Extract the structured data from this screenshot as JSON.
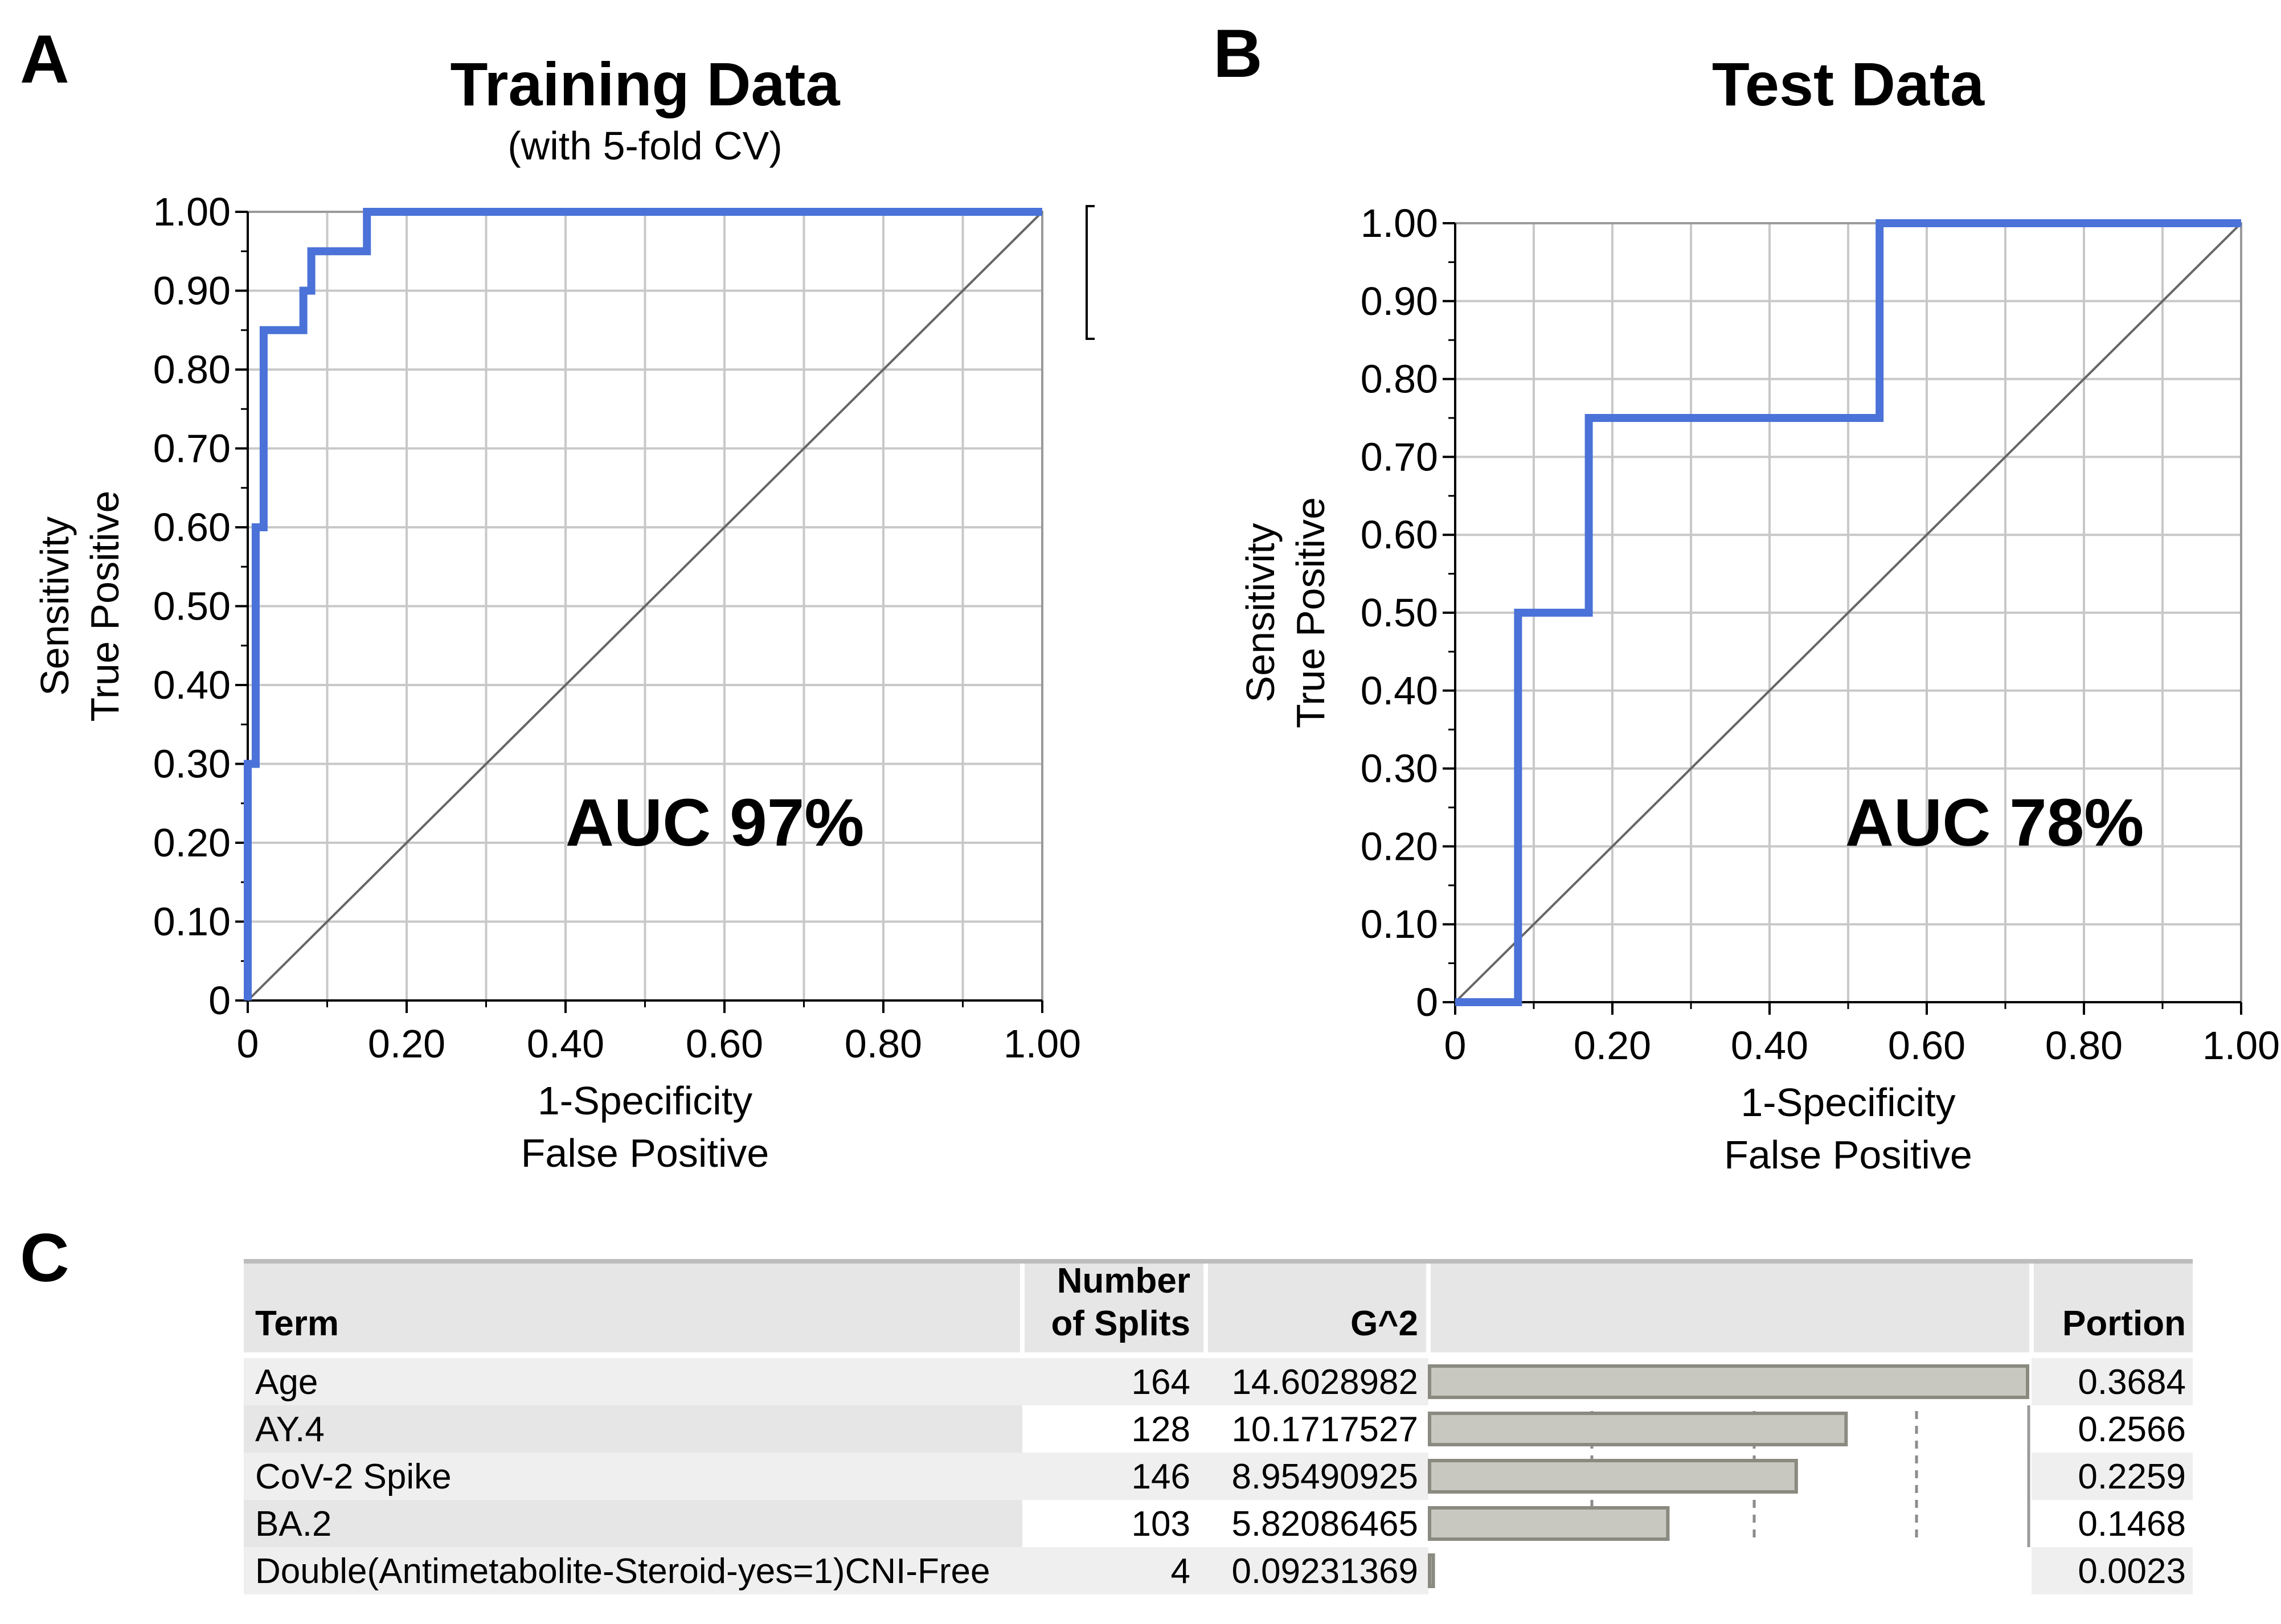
{
  "panels": {
    "a": {
      "letter": "A"
    },
    "b": {
      "letter": "B"
    },
    "c": {
      "letter": "C"
    }
  },
  "chart_data": [
    {
      "type": "line",
      "title": "Training Data",
      "subtitle": "(with 5-fold CV)",
      "xlabel": [
        "1-Specificity",
        "False Positive"
      ],
      "ylabel": [
        "Sensitivity",
        "True Positive"
      ],
      "xlim": [
        0,
        1
      ],
      "ylim": [
        0,
        1
      ],
      "x_ticks": [
        "0",
        "0.20",
        "0.40",
        "0.60",
        "0.80",
        "1.00"
      ],
      "y_ticks": [
        "0",
        "0.10",
        "0.20",
        "0.30",
        "0.40",
        "0.50",
        "0.60",
        "0.70",
        "0.80",
        "0.90",
        "1.00"
      ],
      "grid": true,
      "annotation": "AUC 97%",
      "roc": {
        "color": "#4a72d8",
        "points": [
          [
            0,
            0
          ],
          [
            0,
            0.3
          ],
          [
            0.01,
            0.3
          ],
          [
            0.01,
            0.6
          ],
          [
            0.02,
            0.6
          ],
          [
            0.02,
            0.85
          ],
          [
            0.07,
            0.85
          ],
          [
            0.07,
            0.9
          ],
          [
            0.08,
            0.9
          ],
          [
            0.08,
            0.95
          ],
          [
            0.15,
            0.95
          ],
          [
            0.15,
            1.0
          ],
          [
            1.0,
            1.0
          ]
        ]
      },
      "reference": {
        "color": "#666666",
        "points": [
          [
            0,
            0
          ],
          [
            1,
            1
          ]
        ]
      }
    },
    {
      "type": "line",
      "title": "Test Data",
      "xlabel": [
        "1-Specificity",
        "False Positive"
      ],
      "ylabel": [
        "Sensitivity",
        "True Positive"
      ],
      "xlim": [
        0,
        1
      ],
      "ylim": [
        0,
        1
      ],
      "x_ticks": [
        "0",
        "0.20",
        "0.40",
        "0.60",
        "0.80",
        "1.00"
      ],
      "y_ticks": [
        "0",
        "0.10",
        "0.20",
        "0.30",
        "0.40",
        "0.50",
        "0.60",
        "0.70",
        "0.80",
        "0.90",
        "1.00"
      ],
      "grid": true,
      "annotation": "AUC 78%",
      "roc": {
        "color": "#4a72d8",
        "points": [
          [
            0,
            0
          ],
          [
            0.08,
            0
          ],
          [
            0.08,
            0.5
          ],
          [
            0.17,
            0.5
          ],
          [
            0.17,
            0.75
          ],
          [
            0.54,
            0.75
          ],
          [
            0.54,
            1.0
          ],
          [
            1.0,
            1.0
          ]
        ]
      },
      "reference": {
        "color": "#666666",
        "points": [
          [
            0,
            0
          ],
          [
            1,
            1
          ]
        ]
      }
    },
    {
      "type": "table",
      "headers": {
        "term": "Term",
        "splits": [
          "Number",
          "of Splits"
        ],
        "g2": "G^2",
        "portion": "Portion"
      },
      "bar_max": 0.3684,
      "rows": [
        {
          "term": "Age",
          "splits": "164",
          "g2": "14.6028982",
          "portion": "0.3684",
          "value": 0.3684
        },
        {
          "term": "AY.4",
          "splits": "128",
          "g2": "10.1717527",
          "portion": "0.2566",
          "value": 0.2566
        },
        {
          "term": "CoV-2 Spike",
          "splits": "146",
          "g2": "8.95490925",
          "portion": "0.2259",
          "value": 0.2259
        },
        {
          "term": "BA.2",
          "splits": "103",
          "g2": "5.82086465",
          "portion": "0.1468",
          "value": 0.1468
        },
        {
          "term": "Double(Antimetabolite-Steroid-yes=1)CNI-Free",
          "splits": "4",
          "g2": "0.09231369",
          "portion": "0.0023",
          "value": 0.0023
        }
      ]
    }
  ]
}
